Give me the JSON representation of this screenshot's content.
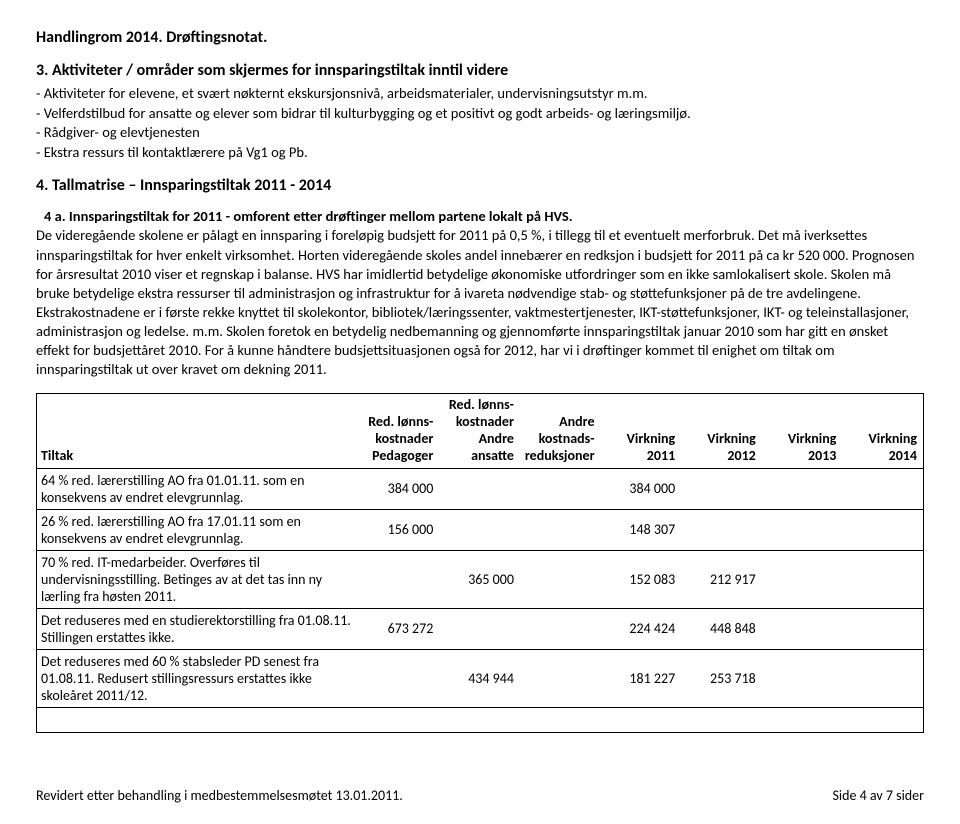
{
  "doc": {
    "title": "Handlingrom 2014. Drøftingsnotat.",
    "section3": {
      "heading": "3. Aktiviteter / områder som skjermes for innsparingstiltak inntil videre",
      "lines": [
        "- Aktiviteter for elevene, et svært nøkternt ekskursjonsnivå, arbeidsmaterialer, undervisningsutstyr m.m.",
        "- Velferdstilbud for ansatte og elever som bidrar til kulturbygging og et positivt og godt arbeids- og læringsmiljø.",
        "- Rådgiver- og elevtjenesten",
        "- Ekstra ressurs til kontaktlærere på Vg1 og Pb."
      ]
    },
    "section4": {
      "heading": "4. Tallmatrise – Innsparingstiltak 2011 - 2014",
      "sub_heading": "4 a. Innsparingstiltak for 2011 - omforent etter drøftinger mellom partene lokalt på HVS.",
      "paragraph": "De videregående skolene er pålagt en innsparing  i foreløpig budsjett for 2011 på 0,5 %, i tillegg til et eventuelt merforbruk. Det må iverksettes innsparingstiltak for hver enkelt virksomhet. Horten videregående skoles andel innebærer en redksjon i budsjett for 2011 på ca kr 520 000. Prognosen for årsresultat 2010 viser et regnskap i balanse. HVS har imidlertid betydelige økonomiske utfordringer som en ikke samlokalisert skole. Skolen må bruke betydelige ekstra ressurser til administrasjon og infrastruktur for å ivareta nødvendige stab- og støttefunksjoner på de tre avdelingene. Ekstrakostnadene er i første rekke knyttet til skolekontor, bibliotek/læringssenter, vaktmestertjenester, IKT-støttefunksjoner, IKT- og teleinstallasjoner, administrasjon og ledelse. m.m. Skolen foretok en betydelig nedbemanning og gjennomførte innsparingstiltak januar 2010 som har gitt en ønsket effekt for budsjettåret 2010. For å kunne håndtere budsjettsituasjonen også for 2012, har vi i drøftinger kommet til enighet om tiltak om innsparingstiltak ut over kravet om dekning 2011."
    },
    "table": {
      "columns": [
        "Tiltak",
        "Red. lønns-kostnader Pedagoger",
        "Red. lønns-kostnader Andre ansatte",
        "Andre kostnads-reduksjoner",
        "Virkning 2011",
        "Virkning 2012",
        "Virkning 2013",
        "Virkning 2014"
      ],
      "col_lines": {
        "c1": [
          "Red. lønns-",
          "kostnader",
          "Pedagoger"
        ],
        "c2": [
          "Red. lønns-",
          "kostnader",
          "Andre",
          "ansatte"
        ],
        "c3": [
          "Andre",
          "kostnads-",
          "reduksjoner"
        ],
        "c4": [
          "Virkning",
          "2011"
        ],
        "c5": [
          "Virkning",
          "2012"
        ],
        "c6": [
          "Virkning",
          "2013"
        ],
        "c7": [
          "Virkning",
          "2014"
        ]
      },
      "rows": [
        {
          "tiltak": "64 % red. lærerstilling AO fra 01.01.11. som en konsekvens av endret elevgrunnlag.",
          "v": [
            "384 000",
            "",
            "",
            "384 000",
            "",
            "",
            ""
          ]
        },
        {
          "tiltak": "26 % red. lærerstilling AO fra 17.01.11 som en konsekvens av endret elevgrunnlag.",
          "v": [
            "156 000",
            "",
            "",
            "148 307",
            "",
            "",
            ""
          ]
        },
        {
          "tiltak": "70 % red. IT-medarbeider. Overføres til undervisningsstilling. Betinges av at det tas inn ny lærling fra høsten 2011.",
          "v": [
            "",
            "365 000",
            "",
            "152 083",
            "212 917",
            "",
            ""
          ]
        },
        {
          "tiltak": "Det reduseres med en studierektorstilling fra 01.08.11. Stillingen erstattes ikke.",
          "v": [
            "673 272",
            "",
            "",
            "224 424",
            "448 848",
            "",
            ""
          ]
        },
        {
          "tiltak": "Det reduseres med 60 % stabsleder PD senest fra 01.08.11. Redusert stillingsressurs erstattes ikke skoleåret 2011/12.",
          "v": [
            "",
            "434 944",
            "",
            "181 227",
            "253 718",
            "",
            ""
          ]
        }
      ]
    },
    "footer": {
      "left": "Revidert etter behandling i medbestemmelsesmøtet 13.01.2011.",
      "right": "Side 4 av 7 sider"
    }
  }
}
